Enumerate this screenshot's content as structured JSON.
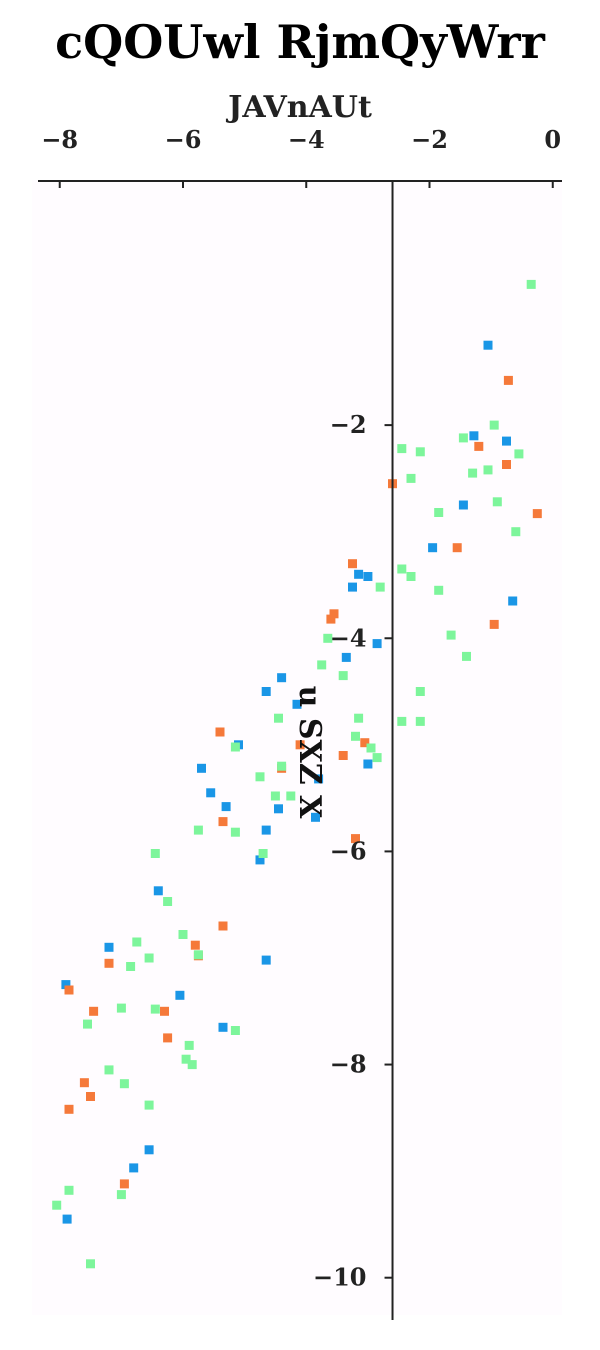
{
  "chart_data": {
    "type": "scatter",
    "title": "cQOUwl RjmQyWrr",
    "xlabel": "JAVnAUt",
    "ylabel": "u SXZ X",
    "xlim": [
      -8.45,
      0.15
    ],
    "ylim": [
      -10.35,
      0.3
    ],
    "xticks": [
      -8,
      -6,
      -4,
      -2,
      0
    ],
    "yticks": [
      -2,
      -4,
      -6,
      -8,
      -10
    ],
    "xtick_labels": [
      "−8",
      "−6",
      "−4",
      "−2",
      "0"
    ],
    "ytick_labels": [
      "−2",
      "−4",
      "−6",
      "−8",
      "−10"
    ],
    "x_axis_position": "top",
    "y_axis_crosses_x": -2.6,
    "grid": false,
    "legend": "none",
    "series": [
      {
        "color": "#1a96e6",
        "points": [
          [
            -1.05,
            -1.25
          ],
          [
            -1.28,
            -2.1
          ],
          [
            -0.75,
            -2.15
          ],
          [
            -1.45,
            -2.75
          ],
          [
            -1.95,
            -3.15
          ],
          [
            -3.15,
            -3.4
          ],
          [
            -3.0,
            -3.42
          ],
          [
            -3.25,
            -3.52
          ],
          [
            -0.65,
            -3.65
          ],
          [
            -2.85,
            -4.05
          ],
          [
            -3.35,
            -4.18
          ],
          [
            -4.4,
            -4.37
          ],
          [
            -4.65,
            -4.5
          ],
          [
            -4.15,
            -4.62
          ],
          [
            -5.1,
            -5.0
          ],
          [
            -3.0,
            -5.18
          ],
          [
            -5.7,
            -5.22
          ],
          [
            -3.8,
            -5.32
          ],
          [
            -5.55,
            -5.45
          ],
          [
            -5.3,
            -5.58
          ],
          [
            -4.45,
            -5.6
          ],
          [
            -3.85,
            -5.68
          ],
          [
            -4.65,
            -5.8
          ],
          [
            -4.75,
            -6.08
          ],
          [
            -6.4,
            -6.37
          ],
          [
            -7.2,
            -6.9
          ],
          [
            -4.65,
            -7.02
          ],
          [
            -7.9,
            -7.25
          ],
          [
            -6.05,
            -7.35
          ],
          [
            -5.35,
            -7.65
          ],
          [
            -6.55,
            -8.8
          ],
          [
            -6.8,
            -8.97
          ],
          [
            -7.88,
            -9.45
          ]
        ]
      },
      {
        "color": "#f5793a",
        "points": [
          [
            -0.72,
            -1.58
          ],
          [
            -1.2,
            -2.2
          ],
          [
            -0.75,
            -2.37
          ],
          [
            -2.6,
            -2.55
          ],
          [
            -0.25,
            -2.83
          ],
          [
            -1.55,
            -3.15
          ],
          [
            -3.25,
            -3.3
          ],
          [
            -3.55,
            -3.77
          ],
          [
            -3.6,
            -3.82
          ],
          [
            -0.95,
            -3.87
          ],
          [
            -5.4,
            -4.88
          ],
          [
            -3.05,
            -4.98
          ],
          [
            -4.1,
            -5.0
          ],
          [
            -3.4,
            -5.1
          ],
          [
            -4.4,
            -5.22
          ],
          [
            -5.35,
            -5.72
          ],
          [
            -3.2,
            -5.88
          ],
          [
            -5.35,
            -6.7
          ],
          [
            -5.8,
            -6.88
          ],
          [
            -5.75,
            -6.98
          ],
          [
            -7.2,
            -7.05
          ],
          [
            -7.85,
            -7.3
          ],
          [
            -7.45,
            -7.5
          ],
          [
            -6.3,
            -7.5
          ],
          [
            -6.25,
            -7.75
          ],
          [
            -7.6,
            -8.17
          ],
          [
            -7.5,
            -8.3
          ],
          [
            -7.85,
            -8.42
          ],
          [
            -6.95,
            -9.12
          ]
        ]
      },
      {
        "color": "#7df59b",
        "points": [
          [
            -0.35,
            -0.68
          ],
          [
            -0.95,
            -2.0
          ],
          [
            -1.45,
            -2.12
          ],
          [
            -2.45,
            -2.22
          ],
          [
            -2.15,
            -2.25
          ],
          [
            -0.55,
            -2.27
          ],
          [
            -1.05,
            -2.42
          ],
          [
            -1.3,
            -2.45
          ],
          [
            -2.3,
            -2.5
          ],
          [
            -0.9,
            -2.72
          ],
          [
            -1.85,
            -2.82
          ],
          [
            -0.6,
            -3.0
          ],
          [
            -2.45,
            -3.35
          ],
          [
            -2.3,
            -3.42
          ],
          [
            -2.8,
            -3.52
          ],
          [
            -1.85,
            -3.55
          ],
          [
            -1.65,
            -3.97
          ],
          [
            -3.65,
            -4.0
          ],
          [
            -1.4,
            -4.17
          ],
          [
            -3.75,
            -4.25
          ],
          [
            -3.4,
            -4.35
          ],
          [
            -2.15,
            -4.5
          ],
          [
            -3.15,
            -4.75
          ],
          [
            -2.45,
            -4.78
          ],
          [
            -2.15,
            -4.78
          ],
          [
            -4.45,
            -4.75
          ],
          [
            -3.2,
            -4.92
          ],
          [
            -5.15,
            -5.02
          ],
          [
            -2.95,
            -5.03
          ],
          [
            -2.85,
            -5.12
          ],
          [
            -4.4,
            -5.2
          ],
          [
            -4.75,
            -5.3
          ],
          [
            -4.5,
            -5.48
          ],
          [
            -4.25,
            -5.48
          ],
          [
            -5.75,
            -5.8
          ],
          [
            -5.15,
            -5.82
          ],
          [
            -4.7,
            -6.02
          ],
          [
            -6.45,
            -6.02
          ],
          [
            -6.25,
            -6.47
          ],
          [
            -6.0,
            -6.78
          ],
          [
            -6.75,
            -6.85
          ],
          [
            -5.75,
            -6.97
          ],
          [
            -6.55,
            -7.0
          ],
          [
            -6.85,
            -7.08
          ],
          [
            -7.0,
            -7.47
          ],
          [
            -6.45,
            -7.48
          ],
          [
            -7.55,
            -7.62
          ],
          [
            -5.15,
            -7.68
          ],
          [
            -5.9,
            -7.82
          ],
          [
            -5.95,
            -7.95
          ],
          [
            -5.85,
            -8.0
          ],
          [
            -7.2,
            -8.05
          ],
          [
            -6.95,
            -8.18
          ],
          [
            -6.55,
            -8.38
          ],
          [
            -7.85,
            -9.18
          ],
          [
            -7.0,
            -9.22
          ],
          [
            -8.05,
            -9.32
          ],
          [
            -7.5,
            -9.87
          ]
        ]
      }
    ]
  }
}
